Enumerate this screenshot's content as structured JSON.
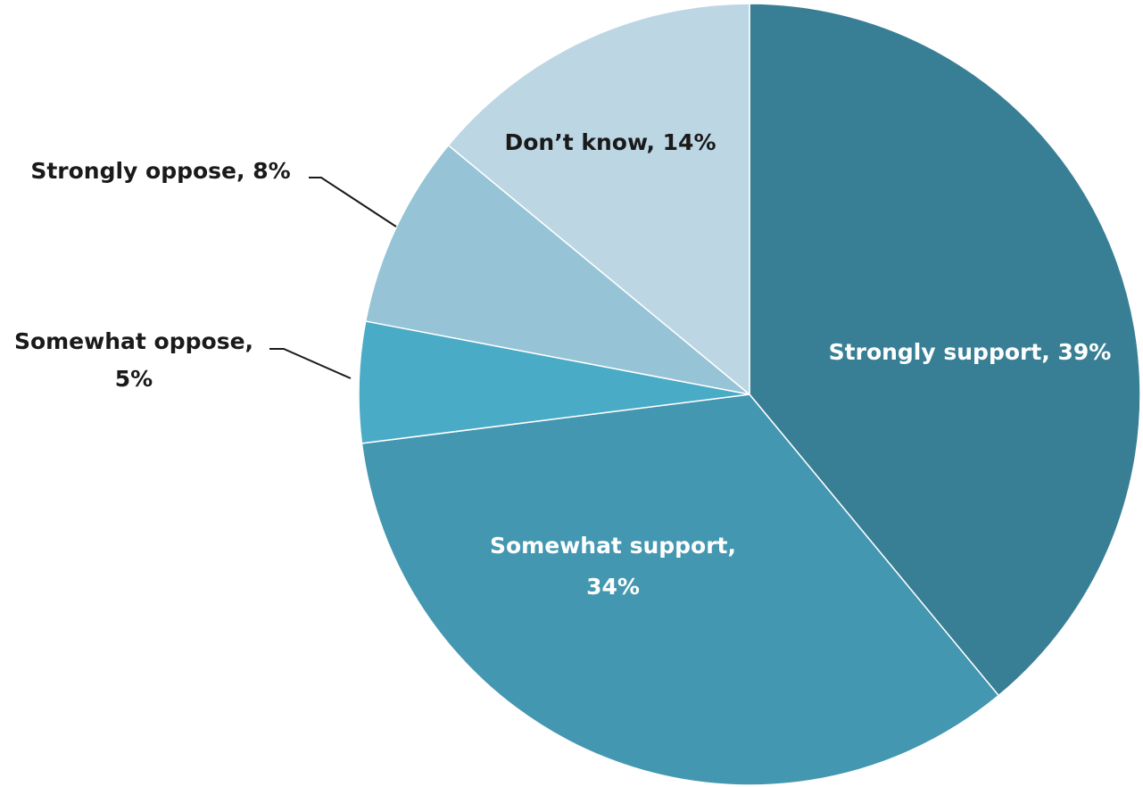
{
  "chart_data": {
    "type": "pie",
    "start_angle_deg": 0,
    "direction": "clockwise",
    "slices": [
      {
        "label": "Strongly support",
        "value": 39,
        "display": [
          "Strongly support, 39%"
        ],
        "color": "#387f95",
        "label_color": "#ffffff"
      },
      {
        "label": "Somewhat support",
        "value": 34,
        "display": [
          "Somewhat support,",
          "34%"
        ],
        "color": "#4397b0",
        "label_color": "#ffffff"
      },
      {
        "label": "Somewhat oppose",
        "value": 5,
        "display": [
          "Somewhat oppose,",
          "5%"
        ],
        "color": "#4aabc6",
        "label_color": "#1a1a1a"
      },
      {
        "label": "Strongly oppose",
        "value": 8,
        "display": [
          "Strongly oppose, 8%"
        ],
        "color": "#96c4d6",
        "label_color": "#1a1a1a"
      },
      {
        "label": "Don’t know",
        "value": 14,
        "display": [
          "Don’t know, 14%"
        ],
        "color": "#bcd7e3",
        "label_color": "#1a1a1a"
      }
    ]
  }
}
